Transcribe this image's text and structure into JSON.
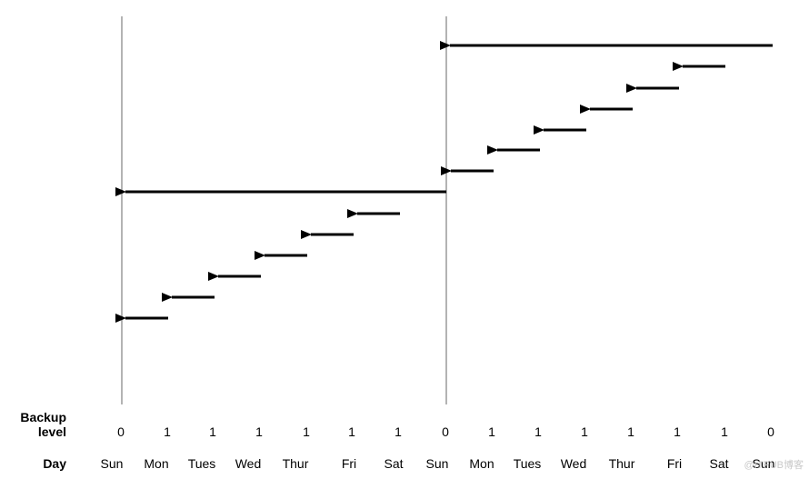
{
  "labels": {
    "backup_level_line1": "Backup",
    "backup_level_line2": "level",
    "day": "Day"
  },
  "columns": [
    {
      "day": "Sun",
      "level": "0"
    },
    {
      "day": "Mon",
      "level": "1"
    },
    {
      "day": "Tues",
      "level": "1"
    },
    {
      "day": "Wed",
      "level": "1"
    },
    {
      "day": "Thur",
      "level": "1"
    },
    {
      "day": "Fri",
      "level": "1"
    },
    {
      "day": "Sat",
      "level": "1"
    },
    {
      "day": "Sun",
      "level": "0"
    },
    {
      "day": "Mon",
      "level": "1"
    },
    {
      "day": "Tues",
      "level": "1"
    },
    {
      "day": "Wed",
      "level": "1"
    },
    {
      "day": "Thur",
      "level": "1"
    },
    {
      "day": "Fri",
      "level": "1"
    },
    {
      "day": "Sat",
      "level": "1"
    },
    {
      "day": "Sun",
      "level": "0"
    }
  ],
  "full_backup_columns": [
    0,
    7
  ],
  "watermark": "@ITPUB博客",
  "colors": {
    "arrow": "#000000",
    "divider": "#9a9a9a"
  }
}
